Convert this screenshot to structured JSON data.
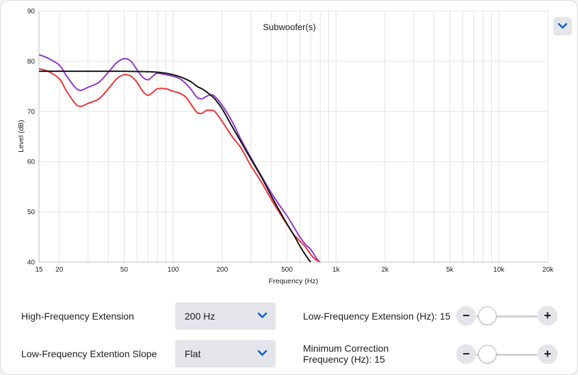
{
  "chart_data": {
    "type": "line",
    "title": "Subwoofer(s)",
    "xlabel": "Frequency (Hz)",
    "ylabel": "Level (dB)",
    "xscale": "log",
    "xlim": [
      15,
      20000
    ],
    "ylim": [
      40,
      90
    ],
    "grid": true,
    "x_ticks": [
      {
        "value": 15,
        "label": "15"
      },
      {
        "value": 20,
        "label": "20"
      },
      {
        "value": 50,
        "label": "50"
      },
      {
        "value": 100,
        "label": "100"
      },
      {
        "value": 200,
        "label": "200"
      },
      {
        "value": 500,
        "label": "500"
      },
      {
        "value": 1000,
        "label": "1k"
      },
      {
        "value": 2000,
        "label": "2k"
      },
      {
        "value": 5000,
        "label": "5k"
      },
      {
        "value": 10000,
        "label": "10k"
      },
      {
        "value": 20000,
        "label": "20k"
      }
    ],
    "y_ticks": [
      {
        "value": 40,
        "label": "40"
      },
      {
        "value": 50,
        "label": "50"
      },
      {
        "value": 60,
        "label": "60"
      },
      {
        "value": 70,
        "label": "70"
      },
      {
        "value": 80,
        "label": "80"
      },
      {
        "value": 90,
        "label": "90"
      }
    ],
    "series": [
      {
        "color": "#8e35c9",
        "points": [
          [
            15,
            81.3
          ],
          [
            17,
            80.6
          ],
          [
            20,
            79.2
          ],
          [
            22,
            77.2
          ],
          [
            25,
            74.8
          ],
          [
            27,
            74.2
          ],
          [
            30,
            74.8
          ],
          [
            35,
            75.8
          ],
          [
            40,
            77.8
          ],
          [
            45,
            79.7
          ],
          [
            50,
            80.5
          ],
          [
            55,
            80.0
          ],
          [
            60,
            78.3
          ],
          [
            65,
            76.8
          ],
          [
            70,
            76.3
          ],
          [
            75,
            77.0
          ],
          [
            80,
            77.6
          ],
          [
            90,
            77.3
          ],
          [
            100,
            77.0
          ],
          [
            110,
            76.5
          ],
          [
            120,
            75.5
          ],
          [
            130,
            74.2
          ],
          [
            140,
            72.8
          ],
          [
            150,
            72.5
          ],
          [
            160,
            73.0
          ],
          [
            170,
            73.3
          ],
          [
            180,
            73.0
          ],
          [
            200,
            71.2
          ],
          [
            230,
            68.0
          ],
          [
            260,
            64.5
          ],
          [
            300,
            60.8
          ],
          [
            350,
            57.0
          ],
          [
            400,
            53.8
          ],
          [
            450,
            51.3
          ],
          [
            500,
            49.2
          ],
          [
            550,
            47.0
          ],
          [
            600,
            45.0
          ],
          [
            650,
            43.5
          ],
          [
            700,
            42.5
          ],
          [
            750,
            41.0
          ],
          [
            800,
            39.8
          ]
        ]
      },
      {
        "color": "#ef3034",
        "points": [
          [
            15,
            78.5
          ],
          [
            17,
            78.0
          ],
          [
            20,
            76.5
          ],
          [
            22,
            74.2
          ],
          [
            25,
            71.6
          ],
          [
            27,
            71.0
          ],
          [
            30,
            71.6
          ],
          [
            35,
            72.5
          ],
          [
            40,
            74.5
          ],
          [
            45,
            76.5
          ],
          [
            50,
            77.3
          ],
          [
            55,
            77.0
          ],
          [
            60,
            75.8
          ],
          [
            65,
            74.0
          ],
          [
            70,
            73.2
          ],
          [
            75,
            73.8
          ],
          [
            80,
            74.5
          ],
          [
            90,
            74.5
          ],
          [
            100,
            74.0
          ],
          [
            110,
            73.6
          ],
          [
            120,
            72.8
          ],
          [
            130,
            71.2
          ],
          [
            140,
            69.8
          ],
          [
            150,
            69.6
          ],
          [
            160,
            70.2
          ],
          [
            170,
            70.2
          ],
          [
            180,
            70.0
          ],
          [
            200,
            68.0
          ],
          [
            230,
            65.0
          ],
          [
            260,
            62.8
          ],
          [
            300,
            59.2
          ],
          [
            350,
            55.8
          ],
          [
            400,
            52.5
          ],
          [
            450,
            49.8
          ],
          [
            500,
            47.5
          ],
          [
            550,
            45.5
          ],
          [
            600,
            44.2
          ],
          [
            650,
            43.0
          ],
          [
            700,
            41.5
          ],
          [
            750,
            40.5
          ],
          [
            800,
            40.0
          ]
        ]
      },
      {
        "color": "#111111",
        "points": [
          [
            15,
            78.0
          ],
          [
            20,
            78.0
          ],
          [
            30,
            78.0
          ],
          [
            50,
            78.0
          ],
          [
            70,
            77.9
          ],
          [
            80,
            77.8
          ],
          [
            90,
            77.6
          ],
          [
            100,
            77.3
          ],
          [
            110,
            76.9
          ],
          [
            120,
            76.4
          ],
          [
            130,
            75.8
          ],
          [
            140,
            75.0
          ],
          [
            150,
            74.5
          ],
          [
            160,
            73.9
          ],
          [
            180,
            72.5
          ],
          [
            200,
            70.5
          ],
          [
            230,
            67.0
          ],
          [
            260,
            64.0
          ],
          [
            300,
            60.5
          ],
          [
            350,
            56.8
          ],
          [
            400,
            53.2
          ],
          [
            450,
            50.2
          ],
          [
            500,
            47.6
          ],
          [
            550,
            45.4
          ],
          [
            600,
            43.2
          ],
          [
            650,
            41.4
          ],
          [
            700,
            39.9
          ]
        ]
      }
    ]
  },
  "controls": {
    "hf_extension": {
      "label": "High-Frequency Extension",
      "value": "200 Hz"
    },
    "lf_slope": {
      "label": "Low-Frequency Extention Slope",
      "value": "Flat"
    },
    "lf_extension": {
      "label": "Low-Frequency Extension (Hz): 15",
      "minus": "−",
      "plus": "+",
      "position": 0
    },
    "min_correction": {
      "label_line1": "Minimum Correction",
      "label_line2": "Frequency (Hz): 15",
      "minus": "−",
      "plus": "+",
      "position": 0
    }
  },
  "colors": {
    "accent": "#0a60d6",
    "control_bg": "#e4e5ea",
    "grid": "#e3e3e3"
  },
  "icons": {
    "expand": "chevron-down-icon",
    "dropdown": "chevron-down-icon"
  }
}
